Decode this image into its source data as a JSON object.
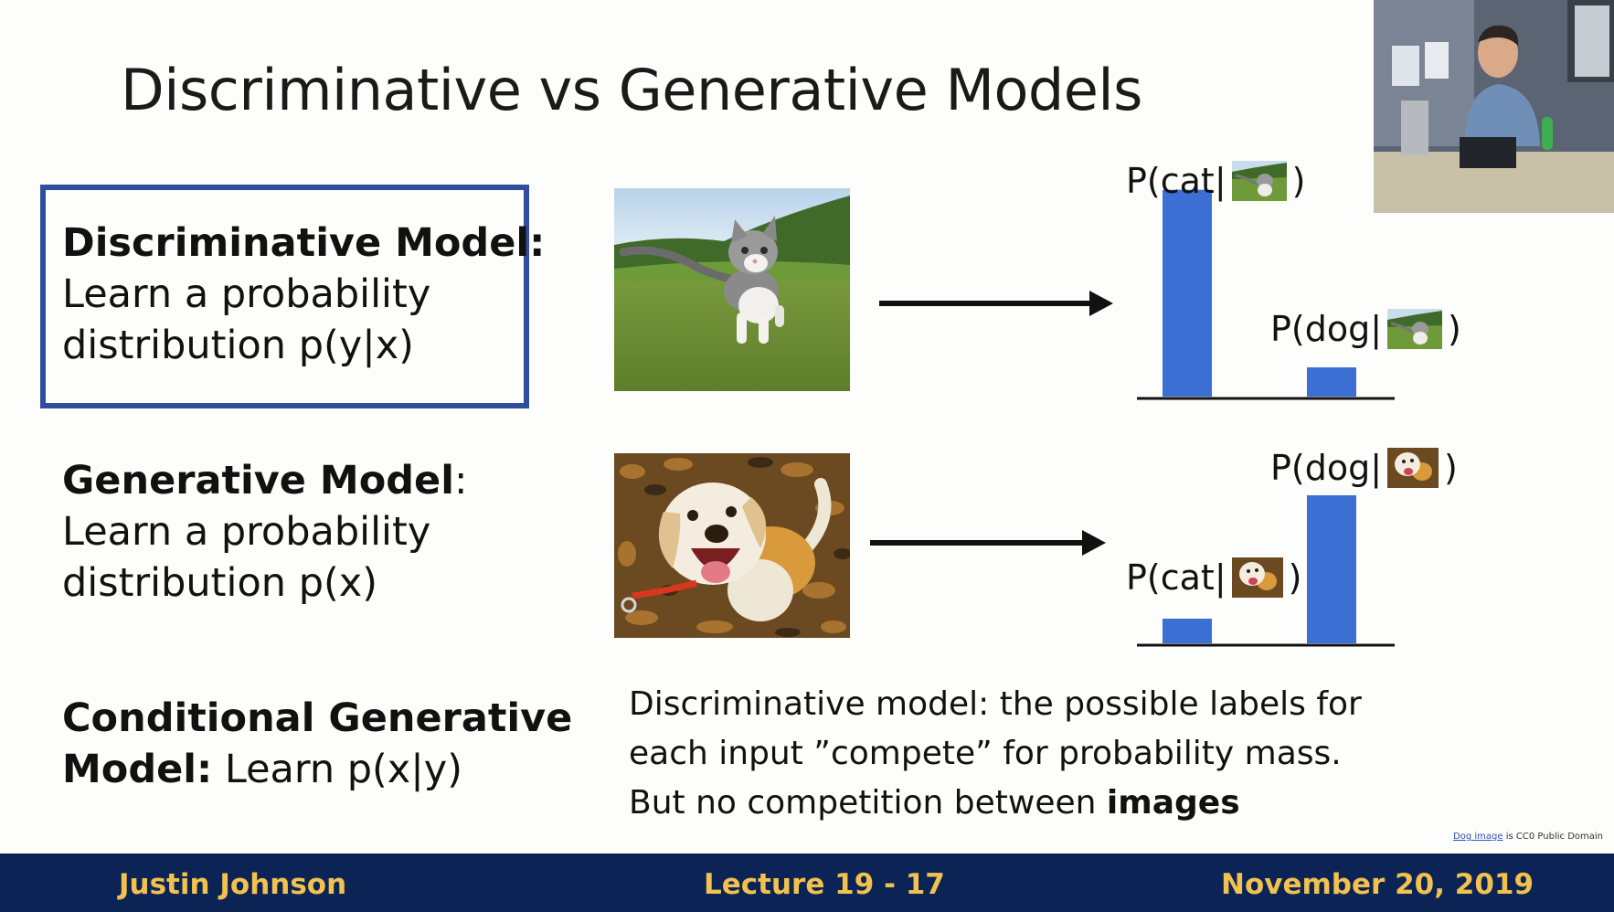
{
  "slide": {
    "title": "Discriminative vs Generative Models",
    "discriminative": {
      "heading": "Discriminative Model:",
      "line1": "Learn a probability",
      "line2": "distribution p(y|x)"
    },
    "generative": {
      "heading": "Generative Model",
      "colon": ":",
      "line1": "Learn a probability",
      "line2": "distribution p(x)"
    },
    "conditional": {
      "heading_line1": "Conditional Generative",
      "heading_line2": "Model:",
      "rest": " Learn p(x|y)"
    },
    "note": {
      "line1": "Discriminative model: the possible labels for",
      "line2": "each input ”compete” for probability mass.",
      "line3_prefix": "But no competition between ",
      "line3_bold": "images"
    },
    "labels": {
      "cat_open": "P(cat|",
      "dog_open": "P(dog|",
      "close": ")"
    },
    "credit": {
      "link": "Dog image",
      "rest": " is CC0 Public Domain"
    }
  },
  "footer": {
    "left": "Justin Johnson",
    "center": "Lecture 19 - 17",
    "right": "November 20, 2019"
  },
  "colors": {
    "bar": "#3b6fd4",
    "box_border": "#2f4f9e",
    "footer_bg": "#0b2455",
    "footer_text": "#f2c14e"
  },
  "chart_data": [
    {
      "type": "bar",
      "categories": [
        "P(cat|x)",
        "P(dog|x)"
      ],
      "values": [
        0.92,
        0.13
      ],
      "ylim": [
        0,
        1
      ],
      "grid": false
    },
    {
      "type": "bar",
      "categories": [
        "P(cat|x)",
        "P(dog|x)"
      ],
      "values": [
        0.15,
        0.9
      ],
      "ylim": [
        0,
        1
      ],
      "grid": false
    }
  ]
}
